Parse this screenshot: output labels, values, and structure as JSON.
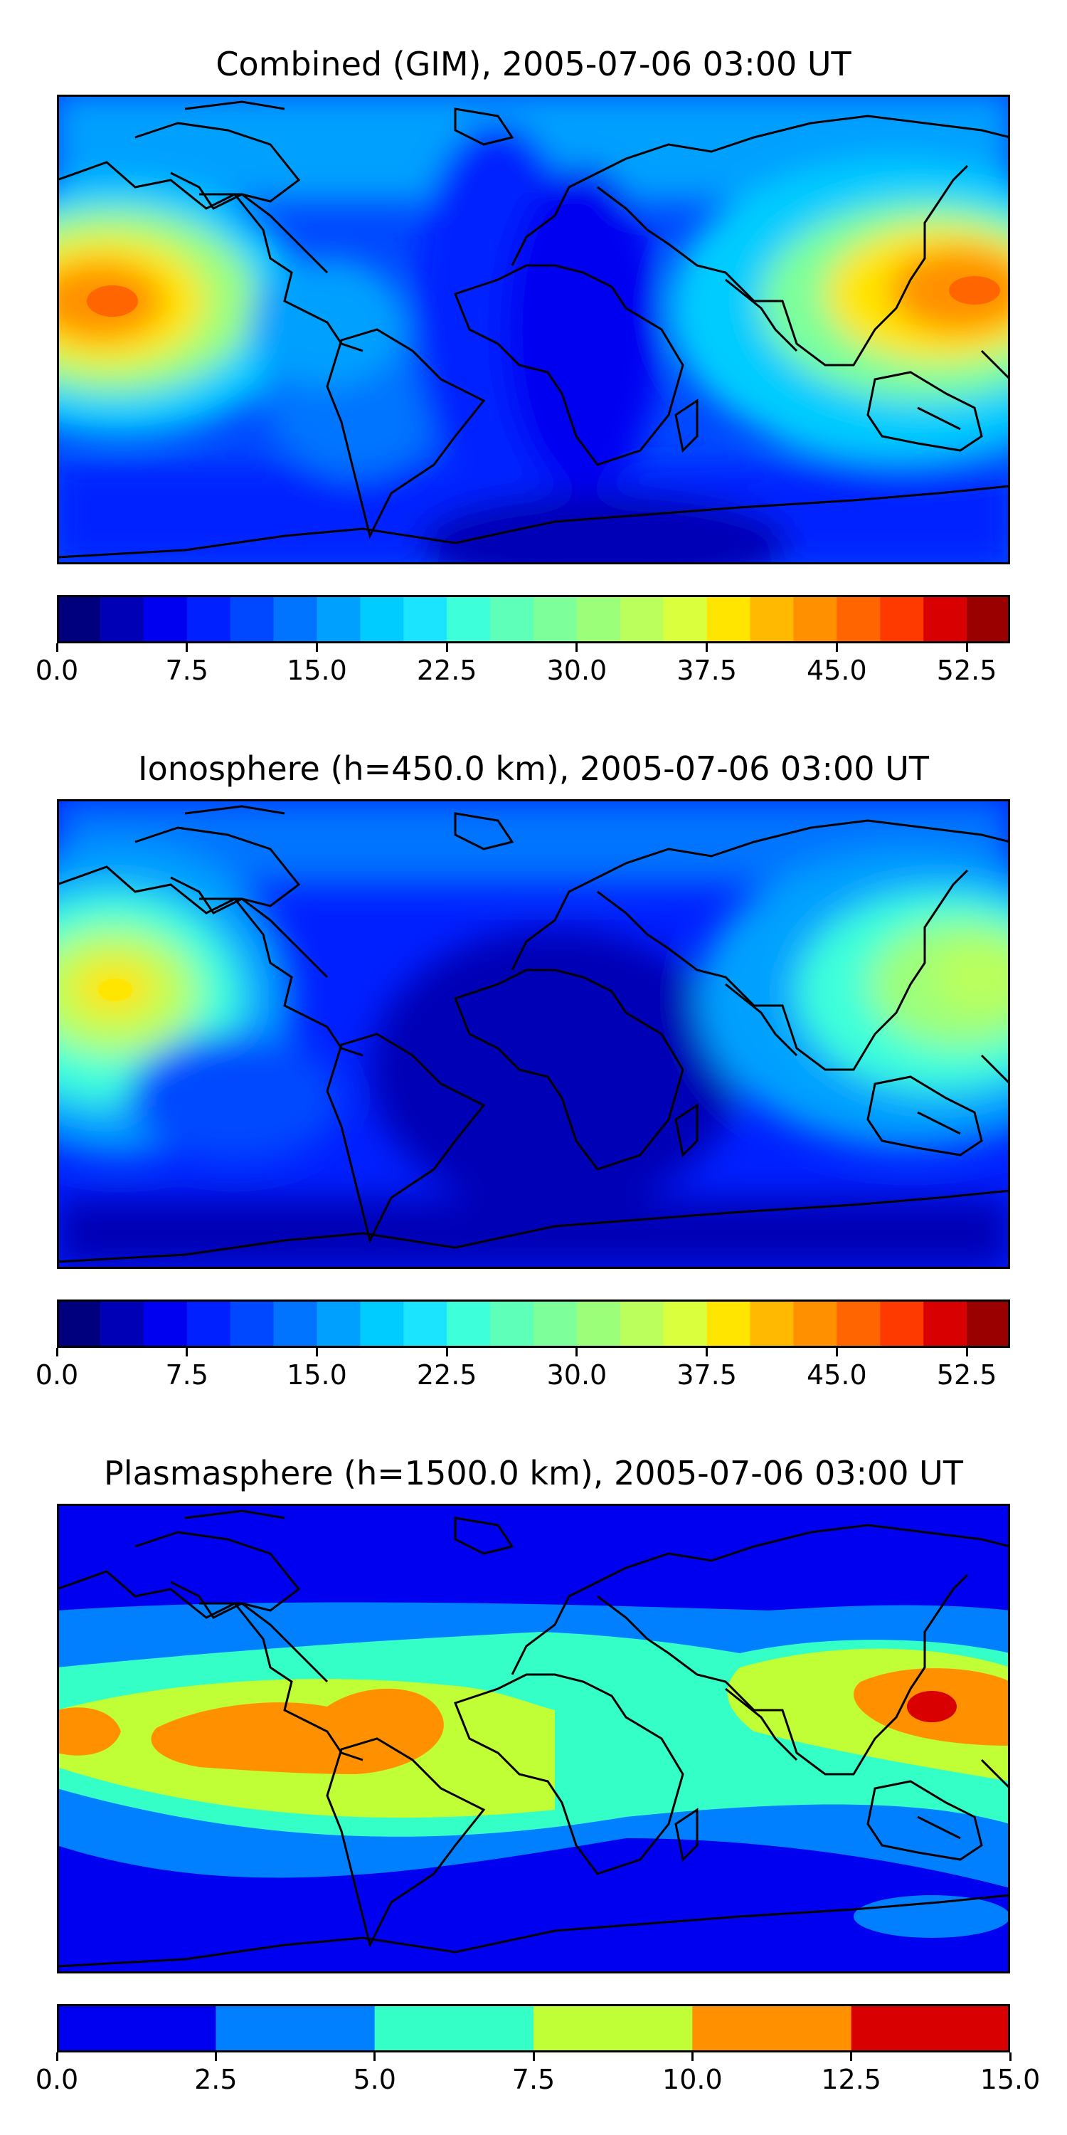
{
  "panels": [
    {
      "title": "Combined (GIM), 2005-07-06 03:00 UT",
      "map_features": [
        "coastlines",
        "equatorial-anomaly-pacific",
        "equatorial-anomaly-asia"
      ],
      "colorbar": {
        "ticks": [
          "0.0",
          "7.5",
          "15.0",
          "22.5",
          "30.0",
          "37.5",
          "45.0",
          "52.5"
        ],
        "min": 0.0,
        "max": 55.0,
        "levels": 22,
        "colors": [
          "#00007f",
          "#0000b6",
          "#0000f1",
          "#0020ff",
          "#0048ff",
          "#0074ff",
          "#00a0ff",
          "#00ccff",
          "#1ae4ff",
          "#3dffda",
          "#5dffb9",
          "#7dff9a",
          "#9cff7a",
          "#baff5b",
          "#d9ff3d",
          "#ffe500",
          "#ffb900",
          "#ff9000",
          "#ff6500",
          "#ff3a00",
          "#d80000",
          "#9a0000"
        ]
      }
    },
    {
      "title": "Ionosphere  (h=450.0 km), 2005-07-06 03:00 UT",
      "map_features": [
        "coastlines",
        "anomaly-pacific",
        "anomaly-asia"
      ],
      "colorbar": {
        "ticks": [
          "0.0",
          "7.5",
          "15.0",
          "22.5",
          "30.0",
          "37.5",
          "45.0",
          "52.5"
        ],
        "min": 0.0,
        "max": 55.0,
        "levels": 22,
        "colors": [
          "#00007f",
          "#0000b6",
          "#0000f1",
          "#0020ff",
          "#0048ff",
          "#0074ff",
          "#00a0ff",
          "#00ccff",
          "#1ae4ff",
          "#3dffda",
          "#5dffb9",
          "#7dff9a",
          "#9cff7a",
          "#baff5b",
          "#d9ff3d",
          "#ffe500",
          "#ffb900",
          "#ff9000",
          "#ff6500",
          "#ff3a00",
          "#d80000",
          "#9a0000"
        ]
      }
    },
    {
      "title": "Plasmasphere (h=1500.0 km), 2005-07-06 03:00 UT",
      "map_features": [
        "coastlines",
        "maximum-south-america",
        "maximum-west-pacific"
      ],
      "colorbar": {
        "ticks": [
          "0.0",
          "2.5",
          "5.0",
          "7.5",
          "10.0",
          "12.5",
          "15.0"
        ],
        "min": 0.0,
        "max": 15.0,
        "levels": 6,
        "colors": [
          "#0000f1",
          "#0080ff",
          "#33ffc6",
          "#c0ff36",
          "#ff9000",
          "#d80000"
        ]
      }
    }
  ]
}
